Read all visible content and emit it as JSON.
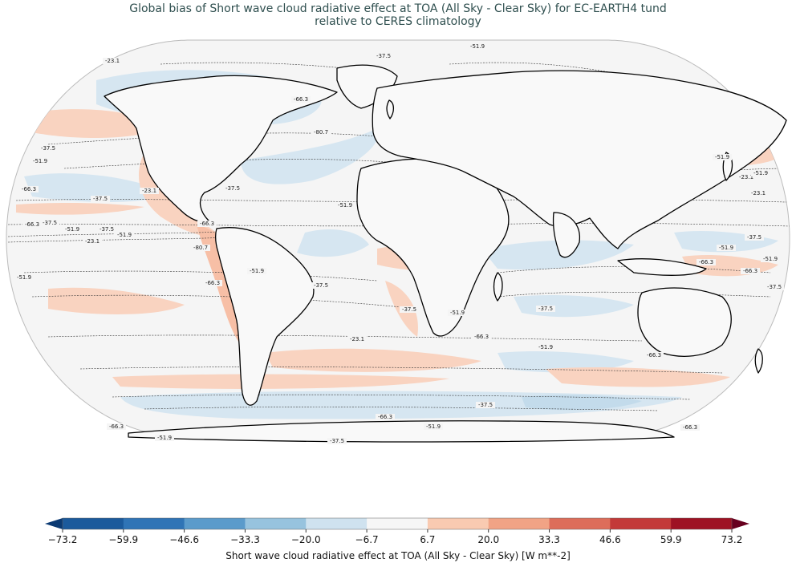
{
  "title": {
    "line1": "Global bias of Short wave cloud radiative effect at TOA (All Sky - Clear Sky) for EC-EARTH4 tund",
    "line2": "relative to CERES climatology"
  },
  "map": {
    "projection": "Robinson",
    "ocean_fill": "#f5f5f5",
    "coastline_color": "#000000",
    "contour_labels": [
      "-23.1",
      "-37.5",
      "-51.9",
      "-66.3",
      "-80.7",
      "-37.5",
      "-51.9",
      "-66.3",
      "-23.1",
      "-37.5",
      "-51.9",
      "-66.3",
      "-37.5",
      "-51.9",
      "-23.1",
      "-37.5",
      "-51.9",
      "-66.3",
      "-80.7",
      "-66.3",
      "-51.9",
      "-37.5",
      "-23.1",
      "-37.5",
      "-51.9",
      "-66.3",
      "-37.5",
      "-51.9",
      "-66.3",
      "-51.9",
      "-37.5",
      "-51.9",
      "-66.3",
      "-37.5",
      "-51.9",
      "-23.1",
      "-23.1",
      "-37.5",
      "-51.9",
      "-66.3",
      "-51.9",
      "-37.5",
      "-66.3",
      "-66.3",
      "-51.9",
      "-37.5",
      "-66.3",
      "-51.9"
    ]
  },
  "colorbar": {
    "label": "Short wave cloud radiative effect at TOA (All Sky - Clear Sky) [W m**-2]",
    "ticks": [
      "−73.2",
      "−59.9",
      "−46.6",
      "−33.3",
      "−20.0",
      "−6.7",
      "6.7",
      "20.0",
      "33.3",
      "46.6",
      "59.9",
      "73.2"
    ],
    "colors": [
      "#1b5a9c",
      "#2f74b6",
      "#5b9bcb",
      "#97c3de",
      "#cfe2ef",
      "#f6f6f6",
      "#f9cab1",
      "#f1a385",
      "#dd6d5a",
      "#c33a39",
      "#9e1224"
    ],
    "under_color": "#0b3a73",
    "over_color": "#67001f",
    "vmin": -73.2,
    "vmax": 73.2
  }
}
